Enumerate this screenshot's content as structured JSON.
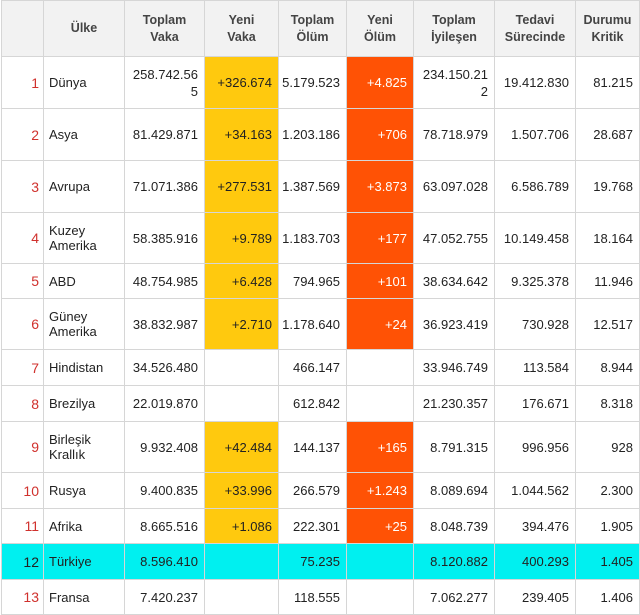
{
  "headers": {
    "ulke": "Ülke",
    "toplam_vaka": [
      "Toplam",
      "Vaka"
    ],
    "yeni_vaka": [
      "Yeni",
      "Vaka"
    ],
    "toplam_olum": [
      "Toplam",
      "Ölüm"
    ],
    "yeni_olum": [
      "Yeni",
      "Ölüm"
    ],
    "toplam_iyilesen": [
      "Toplam",
      "İyileşen"
    ],
    "tedavi": [
      "Tedavi",
      "Sürecinde"
    ],
    "kritik": [
      "Durumu",
      "Kritik"
    ]
  },
  "colors": {
    "yeni_vaka": "#ffc90e",
    "yeni_olum": "#ff5205",
    "highlight": "#00f0f0",
    "index": "#d0312d"
  },
  "rows": [
    {
      "i": "1",
      "name": "Dünya",
      "tv": "258.742.565",
      "nv": "+326.674",
      "to": "5.179.523",
      "nd": "+4.825",
      "ti": "234.150.212",
      "ts": "19.412.830",
      "dk": "81.215"
    },
    {
      "i": "2",
      "name": "Asya",
      "tv": "81.429.871",
      "nv": "+34.163",
      "to": "1.203.186",
      "nd": "+706",
      "ti": "78.718.979",
      "ts": "1.507.706",
      "dk": "28.687"
    },
    {
      "i": "3",
      "name": "Avrupa",
      "tv": "71.071.386",
      "nv": "+277.531",
      "to": "1.387.569",
      "nd": "+3.873",
      "ti": "63.097.028",
      "ts": "6.586.789",
      "dk": "19.768"
    },
    {
      "i": "4",
      "name": "Kuzey Amerika",
      "tv": "58.385.916",
      "nv": "+9.789",
      "to": "1.183.703",
      "nd": "+177",
      "ti": "47.052.755",
      "ts": "10.149.458",
      "dk": "18.164"
    },
    {
      "i": "5",
      "name": "ABD",
      "tv": "48.754.985",
      "nv": "+6.428",
      "to": "794.965",
      "nd": "+101",
      "ti": "38.634.642",
      "ts": "9.325.378",
      "dk": "11.946"
    },
    {
      "i": "6",
      "name": "Güney Amerika",
      "tv": "38.832.987",
      "nv": "+2.710",
      "to": "1.178.640",
      "nd": "+24",
      "ti": "36.923.419",
      "ts": "730.928",
      "dk": "12.517"
    },
    {
      "i": "7",
      "name": "Hindistan",
      "tv": "34.526.480",
      "nv": "",
      "to": "466.147",
      "nd": "",
      "ti": "33.946.749",
      "ts": "113.584",
      "dk": "8.944"
    },
    {
      "i": "8",
      "name": "Brezilya",
      "tv": "22.019.870",
      "nv": "",
      "to": "612.842",
      "nd": "",
      "ti": "21.230.357",
      "ts": "176.671",
      "dk": "8.318"
    },
    {
      "i": "9",
      "name": "Birleşik Krallık",
      "tv": "9.932.408",
      "nv": "+42.484",
      "to": "144.137",
      "nd": "+165",
      "ti": "8.791.315",
      "ts": "996.956",
      "dk": "928"
    },
    {
      "i": "10",
      "name": "Rusya",
      "tv": "9.400.835",
      "nv": "+33.996",
      "to": "266.579",
      "nd": "+1.243",
      "ti": "8.089.694",
      "ts": "1.044.562",
      "dk": "2.300"
    },
    {
      "i": "11",
      "name": "Afrika",
      "tv": "8.665.516",
      "nv": "+1.086",
      "to": "222.301",
      "nd": "+25",
      "ti": "8.048.739",
      "ts": "394.476",
      "dk": "1.905"
    },
    {
      "i": "12",
      "name": "Türkiye",
      "tv": "8.596.410",
      "nv": "",
      "to": "75.235",
      "nd": "",
      "ti": "8.120.882",
      "ts": "400.293",
      "dk": "1.405"
    },
    {
      "i": "13",
      "name": "Fransa",
      "tv": "7.420.237",
      "nv": "",
      "to": "118.555",
      "nd": "",
      "ti": "7.062.277",
      "ts": "239.405",
      "dk": "1.406"
    }
  ]
}
